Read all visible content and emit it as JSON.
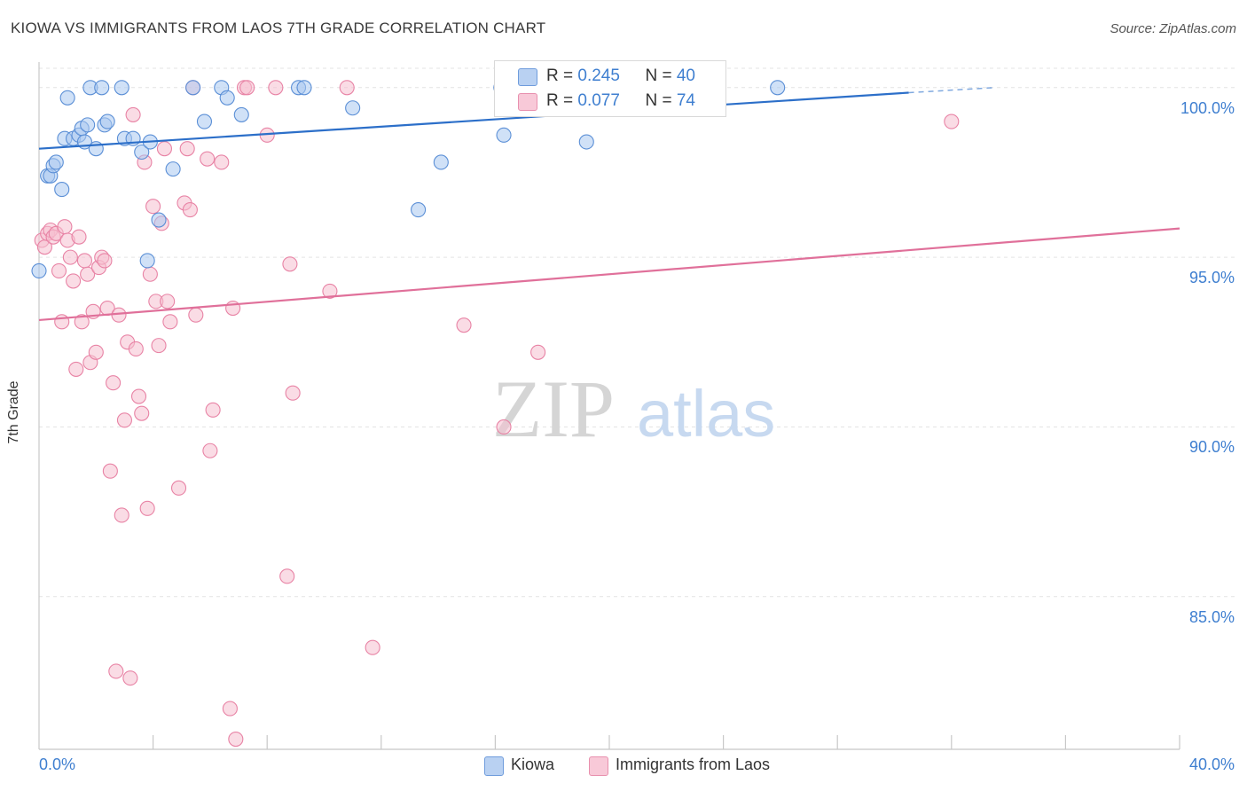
{
  "title": "KIOWA VS IMMIGRANTS FROM LAOS 7TH GRADE CORRELATION CHART",
  "source": "Source: ZipAtlas.com",
  "watermark": {
    "part1": "ZIP",
    "part2": "atlas"
  },
  "colors": {
    "kiowa_fill": "#aac8f0",
    "kiowa_stroke": "#5b8fd6",
    "kiowa_line": "#2c6fc9",
    "laos_fill": "#f6bfd0",
    "laos_stroke": "#e883a5",
    "laos_line": "#e0709a",
    "accent_text": "#3f7fd0",
    "grid": "#e3e3e3"
  },
  "legend": {
    "rows": [
      {
        "r_label": "R = ",
        "r_value": "0.245",
        "n_label": "N = ",
        "n_value": "40"
      },
      {
        "r_label": "R = ",
        "r_value": "0.077",
        "n_label": "N = ",
        "n_value": "74"
      }
    ]
  },
  "chart_data": {
    "type": "scatter",
    "title": "KIOWA VS IMMIGRANTS FROM LAOS 7TH GRADE CORRELATION CHART",
    "xlabel": "",
    "ylabel": "7th Grade",
    "xlim": [
      0,
      40
    ],
    "ylim": [
      80.5,
      100.7
    ],
    "x_tick_labels": [
      "0.0%",
      "40.0%"
    ],
    "y_ticks": [
      100,
      95,
      90,
      85
    ],
    "y_tick_labels": [
      "100.0%",
      "95.0%",
      "90.0%",
      "85.0%"
    ],
    "grid": true,
    "legend_position": "top-center",
    "series": [
      {
        "name": "Kiowa",
        "R": 0.245,
        "N": 40,
        "trend": {
          "x": [
            0,
            30.5
          ],
          "y": [
            98.2,
            99.85
          ],
          "dashed_to": [
            33.5,
            100.0
          ]
        },
        "points": [
          [
            0.0,
            94.6
          ],
          [
            0.3,
            97.4
          ],
          [
            0.4,
            97.4
          ],
          [
            0.5,
            97.7
          ],
          [
            0.6,
            97.8
          ],
          [
            0.8,
            97.0
          ],
          [
            0.9,
            98.5
          ],
          [
            1.0,
            99.7
          ],
          [
            1.2,
            98.5
          ],
          [
            1.4,
            98.6
          ],
          [
            1.5,
            98.8
          ],
          [
            1.6,
            98.4
          ],
          [
            1.7,
            98.9
          ],
          [
            1.8,
            100.0
          ],
          [
            2.0,
            98.2
          ],
          [
            2.2,
            100.0
          ],
          [
            2.3,
            98.9
          ],
          [
            2.4,
            99.0
          ],
          [
            2.9,
            100.0
          ],
          [
            3.0,
            98.5
          ],
          [
            3.3,
            98.5
          ],
          [
            3.6,
            98.1
          ],
          [
            3.8,
            94.9
          ],
          [
            3.9,
            98.4
          ],
          [
            4.2,
            96.1
          ],
          [
            4.7,
            97.6
          ],
          [
            5.4,
            100.0
          ],
          [
            5.8,
            99.0
          ],
          [
            6.4,
            100.0
          ],
          [
            6.6,
            99.7
          ],
          [
            7.1,
            99.2
          ],
          [
            9.1,
            100.0
          ],
          [
            9.3,
            100.0
          ],
          [
            11.0,
            99.4
          ],
          [
            13.3,
            96.4
          ],
          [
            14.1,
            97.8
          ],
          [
            16.2,
            100.0
          ],
          [
            16.3,
            98.6
          ],
          [
            19.2,
            98.4
          ],
          [
            25.9,
            100.0
          ]
        ]
      },
      {
        "name": "Immigrants from Laos",
        "R": 0.077,
        "N": 74,
        "trend": {
          "x": [
            0,
            40
          ],
          "y": [
            93.15,
            95.85
          ]
        },
        "points": [
          [
            0.1,
            95.5
          ],
          [
            0.2,
            95.3
          ],
          [
            0.3,
            95.7
          ],
          [
            0.4,
            95.8
          ],
          [
            0.5,
            95.6
          ],
          [
            0.6,
            95.7
          ],
          [
            0.7,
            94.6
          ],
          [
            0.8,
            93.1
          ],
          [
            0.9,
            95.9
          ],
          [
            1.0,
            95.5
          ],
          [
            1.1,
            95.0
          ],
          [
            1.2,
            94.3
          ],
          [
            1.3,
            91.7
          ],
          [
            1.4,
            95.6
          ],
          [
            1.5,
            93.1
          ],
          [
            1.6,
            94.9
          ],
          [
            1.7,
            94.5
          ],
          [
            1.8,
            91.9
          ],
          [
            1.9,
            93.4
          ],
          [
            2.0,
            92.2
          ],
          [
            2.1,
            94.7
          ],
          [
            2.2,
            95.0
          ],
          [
            2.3,
            94.9
          ],
          [
            2.4,
            93.5
          ],
          [
            2.5,
            88.7
          ],
          [
            2.6,
            91.3
          ],
          [
            2.7,
            82.8
          ],
          [
            2.8,
            93.3
          ],
          [
            2.9,
            87.4
          ],
          [
            3.0,
            90.2
          ],
          [
            3.1,
            92.5
          ],
          [
            3.2,
            82.6
          ],
          [
            3.3,
            99.2
          ],
          [
            3.4,
            92.3
          ],
          [
            3.5,
            90.9
          ],
          [
            3.6,
            90.4
          ],
          [
            3.7,
            97.8
          ],
          [
            3.8,
            87.6
          ],
          [
            3.9,
            94.5
          ],
          [
            4.0,
            96.5
          ],
          [
            4.1,
            93.7
          ],
          [
            4.2,
            92.4
          ],
          [
            4.3,
            96.0
          ],
          [
            4.4,
            98.2
          ],
          [
            4.5,
            93.7
          ],
          [
            4.6,
            93.1
          ],
          [
            4.9,
            88.2
          ],
          [
            5.1,
            96.6
          ],
          [
            5.2,
            98.2
          ],
          [
            5.3,
            96.4
          ],
          [
            5.4,
            100.0
          ],
          [
            5.5,
            93.3
          ],
          [
            5.9,
            97.9
          ],
          [
            6.0,
            89.3
          ],
          [
            6.1,
            90.5
          ],
          [
            6.4,
            97.8
          ],
          [
            6.7,
            81.7
          ],
          [
            6.8,
            93.5
          ],
          [
            6.9,
            80.8
          ],
          [
            7.2,
            100.0
          ],
          [
            7.3,
            100.0
          ],
          [
            8.0,
            98.6
          ],
          [
            8.3,
            100.0
          ],
          [
            8.7,
            85.6
          ],
          [
            8.8,
            94.8
          ],
          [
            8.9,
            91.0
          ],
          [
            10.2,
            94.0
          ],
          [
            10.8,
            100.0
          ],
          [
            11.7,
            83.5
          ],
          [
            14.9,
            93.0
          ],
          [
            16.3,
            90.0
          ],
          [
            17.5,
            92.2
          ],
          [
            32.0,
            99.0
          ],
          [
            20.0,
            100.0
          ]
        ]
      }
    ]
  }
}
